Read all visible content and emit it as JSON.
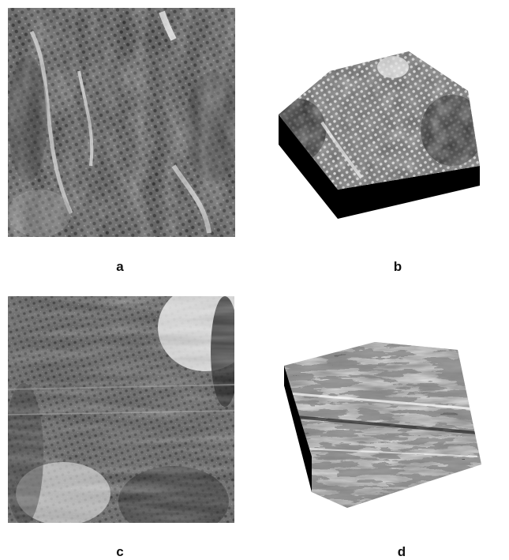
{
  "figure": {
    "panels": [
      {
        "label": "a",
        "kind": "grayscale afm scan, top view"
      },
      {
        "label": "b",
        "kind": "3d surface rendering, block"
      },
      {
        "label": "c",
        "kind": "grayscale afm scan, top view, striated"
      },
      {
        "label": "d",
        "kind": "3d surface rendering, rough"
      }
    ]
  }
}
